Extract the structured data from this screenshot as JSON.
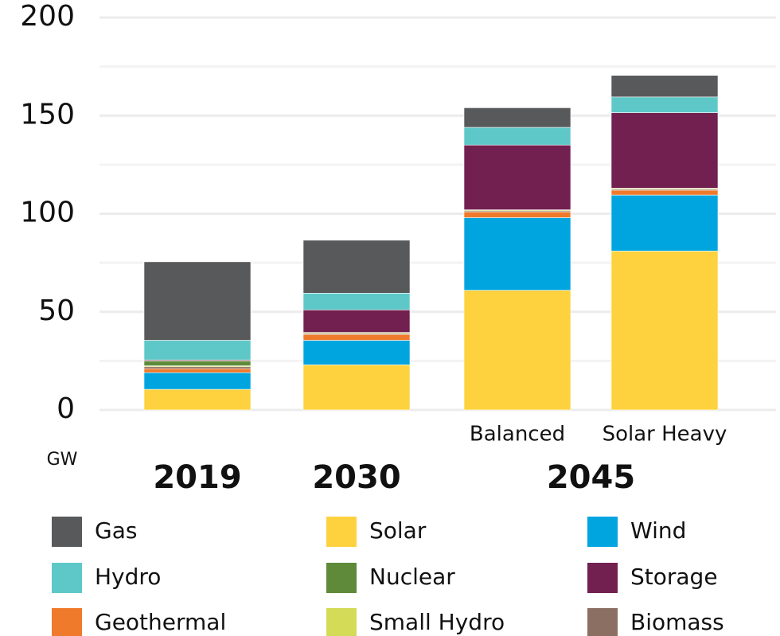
{
  "chart_data": {
    "type": "stacked_bar",
    "y_unit_label": "GW",
    "categories": [
      null,
      null,
      "Balanced",
      "Solar Heavy"
    ],
    "groups": [
      {
        "name": "2019",
        "categories": [
          0
        ]
      },
      {
        "name": "2030",
        "categories": [
          1
        ]
      },
      {
        "name": "2045",
        "categories": [
          2,
          3
        ]
      }
    ],
    "series": [
      {
        "name": "Solar",
        "color": "#fdd23e",
        "values": [
          10.5,
          23,
          61,
          81
        ]
      },
      {
        "name": "Wind",
        "color": "#00a5e0",
        "values": [
          8.5,
          12.5,
          37,
          28.5
        ]
      },
      {
        "name": "Geothermal",
        "color": "#ef7a2b",
        "values": [
          2,
          3,
          3,
          2.5
        ]
      },
      {
        "name": "Biomass",
        "color": "#8b6f63",
        "values": [
          1,
          0.5,
          0.5,
          0.5
        ]
      },
      {
        "name": "Small Hydro",
        "color": "#d4db56",
        "values": [
          0.5,
          0.5,
          0.5,
          0.5
        ]
      },
      {
        "name": "Nuclear",
        "color": "#5e8a3a",
        "values": [
          2.5,
          0,
          0,
          0
        ]
      },
      {
        "name": "Storage",
        "color": "#72204f",
        "values": [
          0.5,
          11.5,
          33,
          38.5
        ]
      },
      {
        "name": "Hydro",
        "color": "#5ec8c8",
        "values": [
          10,
          8.5,
          9,
          8
        ]
      },
      {
        "name": "Gas",
        "color": "#58595b",
        "values": [
          40,
          27,
          10,
          11
        ]
      }
    ],
    "legend_order": [
      8,
      0,
      1,
      7,
      5,
      6,
      2,
      4,
      3
    ],
    "ylim": [
      0,
      200
    ],
    "yticks": [
      0,
      50,
      100,
      150,
      200
    ],
    "minor_yticks": [
      25,
      75,
      125,
      175
    ],
    "grid": true
  }
}
